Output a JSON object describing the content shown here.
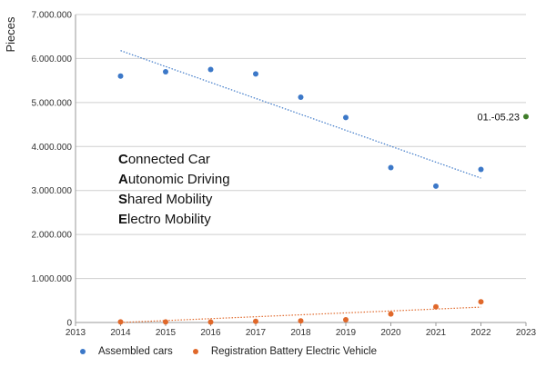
{
  "chart_data": {
    "type": "scatter",
    "ylabel": "Pieces",
    "xlabel": "",
    "xlim": [
      2013,
      2023
    ],
    "ylim": [
      0,
      7000000
    ],
    "x_ticks": [
      "2013",
      "2014",
      "2015",
      "2016",
      "2017",
      "2018",
      "2019",
      "2020",
      "2021",
      "2022",
      "2023"
    ],
    "y_ticks": [
      "0",
      "1.000.000",
      "2.000.000",
      "3.000.000",
      "4.000.000",
      "5.000.000",
      "6.000.000",
      "7.000.000"
    ],
    "grid": "horizontal",
    "legend_position": "bottom",
    "series": [
      {
        "name": "Assembled cars",
        "color": "#3c78c8",
        "trendline": "linear",
        "points": [
          {
            "x": 2014,
            "y": 5600000
          },
          {
            "x": 2015,
            "y": 5700000
          },
          {
            "x": 2016,
            "y": 5750000
          },
          {
            "x": 2017,
            "y": 5650000
          },
          {
            "x": 2018,
            "y": 5120000
          },
          {
            "x": 2019,
            "y": 4660000
          },
          {
            "x": 2020,
            "y": 3520000
          },
          {
            "x": 2021,
            "y": 3100000
          },
          {
            "x": 2022,
            "y": 3480000
          }
        ]
      },
      {
        "name": "Registration Battery Electric Vehicle",
        "color": "#e0682a",
        "trendline": "linear",
        "points": [
          {
            "x": 2014,
            "y": 12000
          },
          {
            "x": 2015,
            "y": 12000
          },
          {
            "x": 2016,
            "y": 11000
          },
          {
            "x": 2017,
            "y": 25000
          },
          {
            "x": 2018,
            "y": 36000
          },
          {
            "x": 2019,
            "y": 63000
          },
          {
            "x": 2020,
            "y": 194000
          },
          {
            "x": 2021,
            "y": 356000
          },
          {
            "x": 2022,
            "y": 471000
          }
        ]
      }
    ],
    "extra_point": {
      "label": "01.-05.23",
      "x": 2023,
      "y": 4680000,
      "color": "#3f7d2a"
    },
    "annotation": {
      "lines": [
        {
          "initial": "C",
          "rest": "onnected Car"
        },
        {
          "initial": "A",
          "rest": "utonomic Driving"
        },
        {
          "initial": "S",
          "rest": "hared Mobility"
        },
        {
          "initial": "E",
          "rest": "lectro Mobility"
        }
      ]
    }
  }
}
